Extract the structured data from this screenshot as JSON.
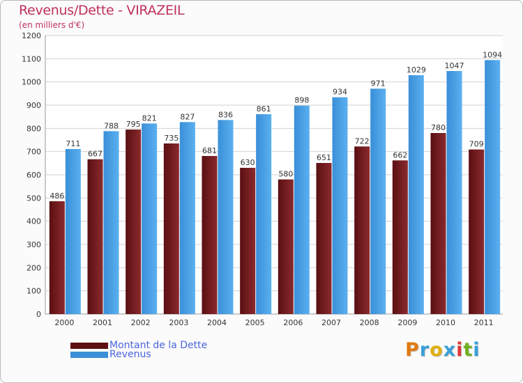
{
  "title": "Revenus/Dette - VIRAZEIL",
  "subtitle": "(en milliers d'€)",
  "logo": {
    "letters": [
      {
        "ch": "P",
        "color": "#e07a10"
      },
      {
        "ch": "r",
        "color": "#3aa0d8"
      },
      {
        "ch": "o",
        "color": "#e0b010"
      },
      {
        "ch": "x",
        "color": "#3aa0d8"
      },
      {
        "ch": "i",
        "color": "#e03a3a"
      },
      {
        "ch": "t",
        "color": "#70b020"
      },
      {
        "ch": "i",
        "color": "#3aa0d8"
      }
    ]
  },
  "chart_data": {
    "type": "bar",
    "categories": [
      "2000",
      "2001",
      "2002",
      "2003",
      "2004",
      "2005",
      "2006",
      "2007",
      "2008",
      "2009",
      "2010",
      "2011"
    ],
    "series": [
      {
        "name": "Montant de la Dette",
        "color": "#7a1e22",
        "values": [
          486,
          667,
          795,
          735,
          681,
          630,
          580,
          651,
          722,
          662,
          780,
          709
        ]
      },
      {
        "name": "Revenus",
        "color": "#4aa3e6",
        "values": [
          711,
          788,
          821,
          827,
          836,
          861,
          898,
          934,
          971,
          1029,
          1047,
          1094
        ]
      }
    ],
    "ylim": [
      0,
      1200
    ],
    "yticks": [
      0,
      100,
      200,
      300,
      400,
      500,
      600,
      700,
      800,
      900,
      1000,
      1100,
      1200
    ],
    "grid": true,
    "legend": "bottom-left"
  }
}
